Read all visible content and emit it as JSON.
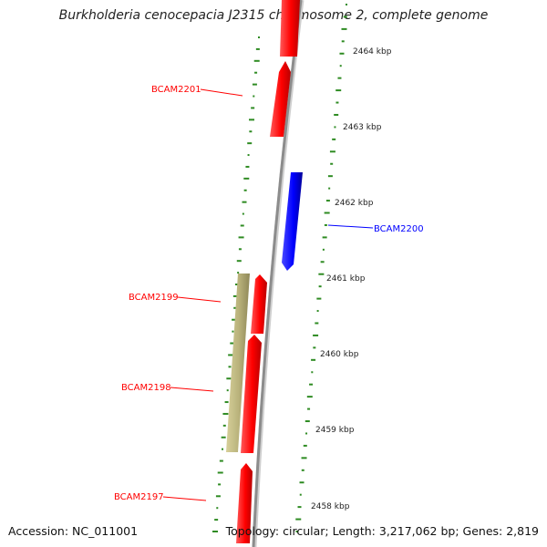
{
  "title": "Burkholderia cenocepacia J2315 chromosome 2, complete genome",
  "footer": {
    "accession": "Accession: NC_011001",
    "topology": "Topology: circular; Length: 3,217,062 bp; Genes: 2,819"
  },
  "scale_labels": [
    "2464 kbp",
    "2463 kbp",
    "2462 kbp",
    "2461 kbp",
    "2460 kbp",
    "2459 kbp",
    "2458 kbp"
  ],
  "genes": [
    {
      "name": "BCAM2201",
      "strand": "+",
      "color": "#ff0000"
    },
    {
      "name": "BCAM2200",
      "strand": "-",
      "color": "#0000ff"
    },
    {
      "name": "BCAM2199",
      "strand": "+",
      "color": "#ff0000"
    },
    {
      "name": "BCAM2198",
      "strand": "+",
      "color": "#ff0000"
    },
    {
      "name": "BCAM2197",
      "strand": "+",
      "color": "#ff0000"
    }
  ],
  "colors": {
    "forward_cds": "#ff0000",
    "reverse_cds": "#0000ff",
    "other_feature": "#b8b17a",
    "backbone": "#8c8c8c",
    "gc_ticks": "#2e8b22"
  }
}
